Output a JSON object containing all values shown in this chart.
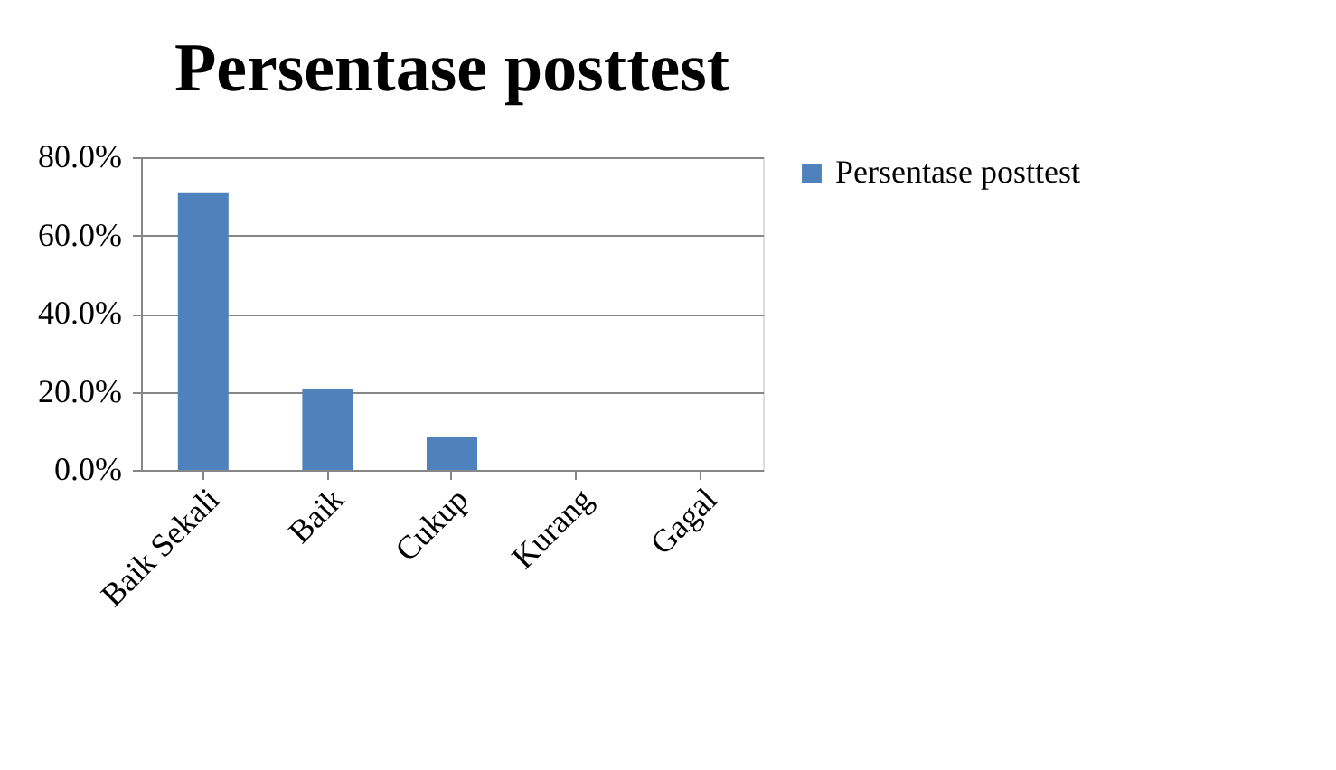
{
  "chart_data": {
    "type": "bar",
    "title": "Persentase posttest",
    "categories": [
      "Baik Sekali",
      "Baik",
      "Cukup",
      "Kurang",
      "Gagal"
    ],
    "series": [
      {
        "name": "Persentase posttest",
        "color": "#4f81bd",
        "values": [
          70.8,
          20.8,
          8.3,
          0,
          0
        ]
      }
    ],
    "ylim": [
      0,
      80
    ],
    "yticks": [
      {
        "value": 0,
        "label": "0.0%"
      },
      {
        "value": 20,
        "label": "20.0%"
      },
      {
        "value": 40,
        "label": "40.0%"
      },
      {
        "value": 60,
        "label": "60.0%"
      },
      {
        "value": 80,
        "label": "80.0%"
      }
    ],
    "grid": "y",
    "legend": "right"
  }
}
